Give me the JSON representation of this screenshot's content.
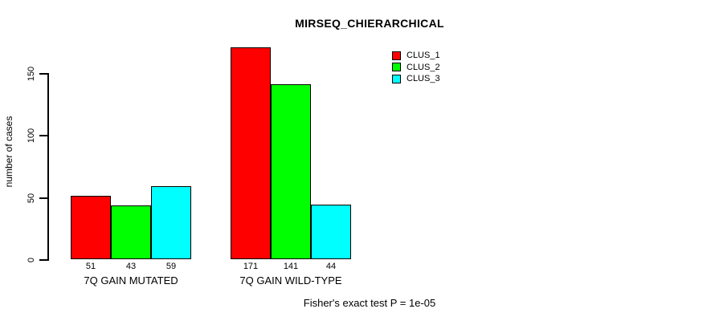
{
  "window": {
    "background_color": "#ffffff",
    "text_color": "#000000"
  },
  "chart_data": {
    "type": "bar",
    "title": "MIRSEQ_CHIERARCHICAL",
    "ylabel": "number of cases",
    "xlabel": "",
    "categories": [
      "7Q GAIN MUTATED",
      "7Q GAIN WILD-TYPE"
    ],
    "series": [
      {
        "name": "CLUS_1",
        "color": "#ff0000",
        "values": [
          51,
          171
        ]
      },
      {
        "name": "CLUS_2",
        "color": "#00ff00",
        "values": [
          43,
          141
        ]
      },
      {
        "name": "CLUS_3",
        "color": "#00ffff",
        "values": [
          59,
          44
        ]
      }
    ],
    "yticks": [
      0,
      50,
      100,
      150
    ],
    "ylim": [
      0,
      171
    ],
    "grid": false,
    "bar_border_color": "#000000",
    "value_labels_shown": true,
    "legend_position": "top-right",
    "footnote": "Fisher's exact test P = 1e-05"
  }
}
